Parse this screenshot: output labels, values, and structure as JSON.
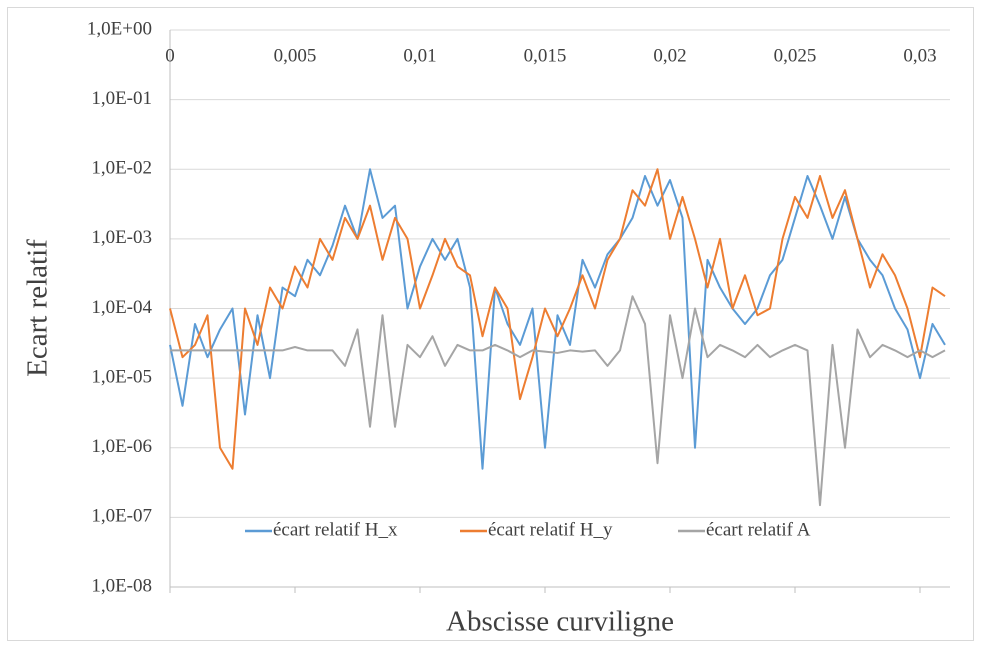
{
  "chart_data": {
    "type": "line",
    "x_label": "Abscisse curviligne",
    "y_label": "Ecart relatif",
    "log_y": true,
    "grid": true,
    "legend": "bottom",
    "xlim": [
      0,
      0.0312
    ],
    "xticks": [
      0,
      {
        "value": 0.005,
        "label": "0,005"
      },
      {
        "value": 0.01,
        "label": "0,01"
      },
      {
        "value": 0.015,
        "label": "0,015"
      },
      {
        "value": 0.02,
        "label": "0,02"
      },
      {
        "value": 0.025,
        "label": "0,025"
      },
      {
        "value": 0.03,
        "label": "0,03"
      }
    ],
    "ylim": [
      1e-08,
      1
    ],
    "yticks": [
      {
        "value": 1e-08,
        "label": "1,0E-08"
      },
      {
        "value": 1e-07,
        "label": "1,0E-07"
      },
      {
        "value": 1e-06,
        "label": "1,0E-06"
      },
      {
        "value": 1e-05,
        "label": "1,0E-05"
      },
      {
        "value": 0.0001,
        "label": "1,0E-04"
      },
      {
        "value": 0.001,
        "label": "1,0E-03"
      },
      {
        "value": 0.01,
        "label": "1,0E-02"
      },
      {
        "value": 0.1,
        "label": "1,0E-01"
      },
      {
        "value": 1,
        "label": "1,0E+00"
      }
    ],
    "x": [
      0,
      0.0005,
      0.001,
      0.0015,
      0.002,
      0.0025,
      0.003,
      0.0035,
      0.004,
      0.0045,
      0.005,
      0.0055,
      0.006,
      0.0065,
      0.007,
      0.0075,
      0.008,
      0.0085,
      0.009,
      0.0095,
      0.01,
      0.0105,
      0.011,
      0.0115,
      0.012,
      0.0125,
      0.013,
      0.0135,
      0.014,
      0.0145,
      0.015,
      0.0155,
      0.016,
      0.0165,
      0.017,
      0.0175,
      0.018,
      0.0185,
      0.019,
      0.0195,
      0.02,
      0.0205,
      0.021,
      0.0215,
      0.022,
      0.0225,
      0.023,
      0.0235,
      0.024,
      0.0245,
      0.025,
      0.0255,
      0.026,
      0.0265,
      0.027,
      0.0275,
      0.028,
      0.0285,
      0.029,
      0.0295,
      0.03,
      0.0305,
      0.031
    ],
    "series": [
      {
        "name": "écart relatif H_x",
        "color": "#5b9bd5",
        "values": [
          3e-05,
          4e-06,
          6e-05,
          2e-05,
          5e-05,
          0.0001,
          3e-06,
          8e-05,
          1e-05,
          0.0002,
          0.00015,
          0.0005,
          0.0003,
          0.0008,
          0.003,
          0.001,
          0.01,
          0.002,
          0.003,
          0.0001,
          0.0004,
          0.001,
          0.0005,
          0.001,
          0.0002,
          5e-07,
          0.0002,
          6e-05,
          3e-05,
          0.0001,
          1e-06,
          8e-05,
          3e-05,
          0.0005,
          0.0002,
          0.0006,
          0.001,
          0.002,
          0.008,
          0.003,
          0.007,
          0.002,
          1e-06,
          0.0005,
          0.0002,
          0.0001,
          6e-05,
          0.0001,
          0.0003,
          0.0005,
          0.002,
          0.008,
          0.003,
          0.001,
          0.004,
          0.001,
          0.0005,
          0.0003,
          0.0001,
          5e-05,
          1e-05,
          6e-05,
          3e-05
        ]
      },
      {
        "name": "écart relatif H_y",
        "color": "#ed7d31",
        "values": [
          0.0001,
          2e-05,
          3e-05,
          8e-05,
          1e-06,
          5e-07,
          0.0001,
          3e-05,
          0.0002,
          0.0001,
          0.0004,
          0.0002,
          0.001,
          0.0005,
          0.002,
          0.001,
          0.003,
          0.0005,
          0.002,
          0.001,
          0.0001,
          0.0003,
          0.001,
          0.0004,
          0.0003,
          4e-05,
          0.0002,
          0.0001,
          5e-06,
          2e-05,
          0.0001,
          4e-05,
          0.0001,
          0.0003,
          0.0001,
          0.0005,
          0.001,
          0.005,
          0.003,
          0.01,
          0.001,
          0.004,
          0.001,
          0.0002,
          0.001,
          0.0001,
          0.0003,
          8e-05,
          0.0001,
          0.001,
          0.004,
          0.002,
          0.008,
          0.002,
          0.005,
          0.001,
          0.0002,
          0.0006,
          0.0003,
          0.0001,
          2e-05,
          0.0002,
          0.00015
        ]
      },
      {
        "name": "écart relatif A",
        "color": "#a5a5a5",
        "values": [
          2.5e-05,
          2.5e-05,
          2.5e-05,
          2.5e-05,
          2.5e-05,
          2.5e-05,
          2.5e-05,
          2.5e-05,
          2.5e-05,
          2.5e-05,
          2.8e-05,
          2.5e-05,
          2.5e-05,
          2.5e-05,
          1.5e-05,
          5e-05,
          2e-06,
          8e-05,
          2e-06,
          3e-05,
          2e-05,
          4e-05,
          1.5e-05,
          3e-05,
          2.5e-05,
          2.5e-05,
          3e-05,
          2.5e-05,
          2e-05,
          2.5e-05,
          2.4e-05,
          2.3e-05,
          2.5e-05,
          2.4e-05,
          2.5e-05,
          1.5e-05,
          2.5e-05,
          0.00015,
          6e-05,
          6e-07,
          8e-05,
          1e-05,
          0.0001,
          2e-05,
          3e-05,
          2.5e-05,
          2e-05,
          3e-05,
          2e-05,
          2.5e-05,
          3e-05,
          2.5e-05,
          1.5e-07,
          3e-05,
          1e-06,
          5e-05,
          2e-05,
          3e-05,
          2.5e-05,
          2e-05,
          2.5e-05,
          2e-05,
          2.5e-05
        ]
      }
    ]
  }
}
